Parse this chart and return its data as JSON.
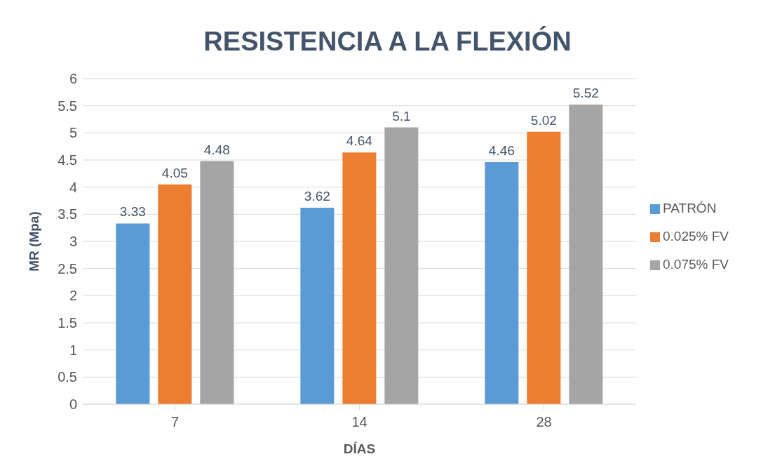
{
  "chart_data": {
    "type": "bar",
    "title": "RESISTENCIA A LA FLEXIÓN",
    "xlabel": "DÍAS",
    "ylabel": "MR (Mpa)",
    "categories": [
      "7",
      "14",
      "28"
    ],
    "series": [
      {
        "name": "PATRÓN",
        "color": "#5b9bd5",
        "values": [
          3.33,
          3.62,
          4.46
        ]
      },
      {
        "name": "0.025% FV",
        "color": "#ed7d31",
        "values": [
          4.05,
          4.64,
          5.02
        ]
      },
      {
        "name": "0.075% FV",
        "color": "#a5a5a5",
        "values": [
          4.48,
          5.1,
          5.52
        ]
      }
    ],
    "ylim": [
      0,
      6
    ],
    "yticks": [
      0,
      0.5,
      1,
      1.5,
      2,
      2.5,
      3,
      3.5,
      4,
      4.5,
      5,
      5.5,
      6
    ],
    "grid": "y",
    "legend": "right",
    "data_labels": true
  }
}
